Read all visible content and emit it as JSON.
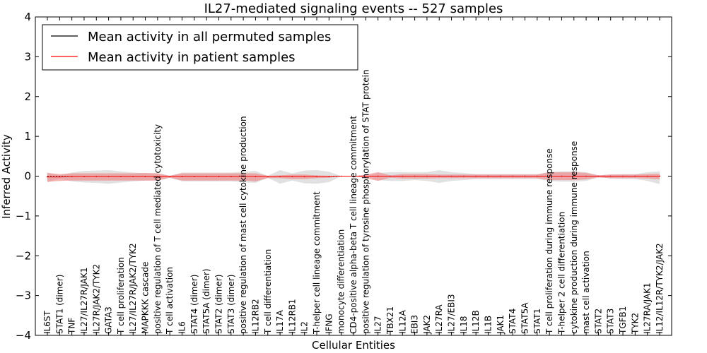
{
  "chart_data": {
    "type": "line",
    "title": "IL27-mediated signaling events -- 527 samples",
    "xlabel": "Cellular Entities",
    "ylabel": "Inferred Activity",
    "ylim": [
      -4,
      4
    ],
    "yticks": [
      -4,
      -3,
      -2,
      -1,
      0,
      1,
      2,
      3,
      4
    ],
    "ytick_labels": [
      "−4",
      "−3",
      "−2",
      "−1",
      "0",
      "1",
      "2",
      "3",
      "4"
    ],
    "legend_position": "top-left",
    "categories": [
      "IL6ST",
      "STAT1 (dimer)",
      "TNF",
      "IL27/IL27R/JAK1",
      "IL27R/JAK2/TYK2",
      "GATA3",
      "T cell proliferation",
      "IL27/IL27R/JAK2/TYK2",
      "MAPKKK cascade",
      "positive regulation of T cell mediated cytotoxicity",
      "T cell activation",
      "IL6",
      "STAT4 (dimer)",
      "STAT5A (dimer)",
      "STAT2 (dimer)",
      "STAT3 (dimer)",
      "positive regulation of mast cell cytokine production",
      "IL12RB2",
      "T cell differentiation",
      "IL17A",
      "IL12RB1",
      "IL2",
      "T-helper cell lineage commitment",
      "IFNG",
      "monocyte differentiation",
      "CD4-positive alpha-beta T cell lineage commitment",
      "positive regulation of tyrosine phosphorylation of STAT protein",
      "IL27",
      "TBX21",
      "IL12A",
      "EBI3",
      "JAK2",
      "IL27RA",
      "IL27/EBI3",
      "IL18",
      "IL12B",
      "IL1B",
      "JAK1",
      "STAT4",
      "STAT5A",
      "STAT1",
      "T cell proliferation during immune response",
      "T-helper 2 cell differentiation",
      "cytokine production during immune response",
      "mast cell activation",
      "STAT2",
      "STAT3",
      "TGFB1",
      "TYK2",
      "IL27RA/JAK1",
      "IL12/IL12R/TYK2/JAK2"
    ],
    "series": [
      {
        "name": "Mean activity in all permuted samples",
        "color": "#000000",
        "values": [
          -0.01,
          -0.01,
          -0.01,
          -0.01,
          -0.01,
          -0.01,
          -0.01,
          -0.01,
          -0.01,
          -0.01,
          -0.01,
          -0.01,
          -0.01,
          -0.01,
          -0.01,
          -0.01,
          -0.01,
          -0.01,
          -0.01,
          -0.01,
          -0.01,
          -0.01,
          -0.01,
          -0.01,
          0.0,
          0.0,
          0.0,
          0.0,
          0.0,
          0.0,
          0.0,
          0.0,
          0.0,
          0.0,
          0.0,
          0.0,
          0.0,
          0.0,
          0.0,
          0.0,
          0.0,
          0.0,
          0.0,
          0.0,
          0.0,
          0.0,
          0.0,
          0.0,
          0.0,
          0.0,
          0.0
        ],
        "band_upper": [
          0.1,
          0.03,
          0.1,
          0.14,
          0.15,
          0.16,
          0.13,
          0.1,
          0.08,
          0.08,
          0.02,
          0.1,
          0.1,
          0.1,
          0.1,
          0.1,
          0.12,
          0.14,
          0.02,
          0.16,
          0.08,
          0.15,
          0.16,
          0.12,
          0.0,
          0.0,
          0.0,
          0.08,
          0.1,
          0.1,
          0.1,
          0.1,
          0.15,
          0.1,
          0.08,
          0.05,
          0.05,
          0.05,
          0.05,
          0.05,
          0.05,
          0.1,
          0.12,
          0.12,
          0.1,
          0.02,
          0.04,
          0.05,
          0.05,
          0.1,
          0.12
        ],
        "band_lower": [
          -0.15,
          -0.05,
          -0.12,
          -0.15,
          -0.16,
          -0.18,
          -0.15,
          -0.12,
          -0.1,
          -0.1,
          -0.03,
          -0.12,
          -0.12,
          -0.12,
          -0.12,
          -0.12,
          -0.14,
          -0.16,
          -0.03,
          -0.18,
          -0.1,
          -0.17,
          -0.18,
          -0.14,
          0.0,
          0.0,
          0.0,
          -0.1,
          -0.12,
          -0.12,
          -0.1,
          -0.12,
          -0.17,
          -0.12,
          -0.1,
          -0.07,
          -0.07,
          -0.07,
          -0.07,
          -0.07,
          -0.07,
          -0.12,
          -0.14,
          -0.14,
          -0.12,
          -0.03,
          -0.06,
          -0.07,
          -0.07,
          -0.12,
          -0.2
        ],
        "band_color": "#c8c8c8"
      },
      {
        "name": "Mean activity in patient samples",
        "color": "#ff0000",
        "values": [
          -0.02,
          -0.02,
          -0.01,
          -0.01,
          -0.01,
          -0.01,
          -0.01,
          -0.01,
          -0.01,
          -0.01,
          -0.01,
          -0.01,
          -0.01,
          -0.01,
          -0.01,
          -0.01,
          -0.01,
          -0.01,
          -0.01,
          -0.01,
          -0.01,
          -0.01,
          -0.01,
          -0.01,
          0.0,
          0.0,
          0.0,
          0.0,
          0.0,
          0.0,
          0.0,
          0.0,
          0.0,
          0.0,
          0.0,
          0.0,
          0.0,
          0.0,
          0.0,
          0.0,
          0.0,
          0.0,
          0.0,
          0.0,
          0.0,
          0.0,
          0.0,
          0.0,
          0.0,
          0.0,
          0.0
        ],
        "band_upper": [
          0.1,
          0.07,
          0.08,
          0.08,
          0.08,
          0.08,
          0.08,
          0.08,
          0.09,
          0.08,
          0.02,
          0.08,
          0.08,
          0.08,
          0.08,
          0.08,
          0.08,
          0.08,
          0.02,
          0.03,
          0.05,
          0.05,
          0.03,
          0.02,
          0.0,
          0.0,
          0.04,
          0.1,
          0.02,
          0.05,
          0.05,
          0.05,
          0.04,
          0.04,
          0.04,
          0.04,
          0.04,
          0.04,
          0.04,
          0.04,
          0.04,
          0.1,
          0.1,
          0.1,
          0.08,
          0.02,
          0.04,
          0.04,
          0.04,
          0.05,
          0.06
        ],
        "band_lower": [
          -0.12,
          -0.1,
          -0.1,
          -0.1,
          -0.1,
          -0.1,
          -0.1,
          -0.1,
          -0.1,
          -0.1,
          -0.03,
          -0.1,
          -0.1,
          -0.1,
          -0.1,
          -0.1,
          -0.1,
          -0.12,
          -0.04,
          -0.04,
          -0.06,
          -0.06,
          -0.04,
          -0.03,
          0.0,
          0.0,
          -0.05,
          -0.12,
          -0.04,
          -0.06,
          -0.06,
          -0.06,
          -0.05,
          -0.05,
          -0.05,
          -0.05,
          -0.05,
          -0.05,
          -0.05,
          -0.05,
          -0.05,
          -0.1,
          -0.1,
          -0.1,
          -0.08,
          -0.03,
          -0.05,
          -0.05,
          -0.05,
          -0.06,
          -0.08
        ],
        "band_color": "#f08080"
      }
    ]
  }
}
